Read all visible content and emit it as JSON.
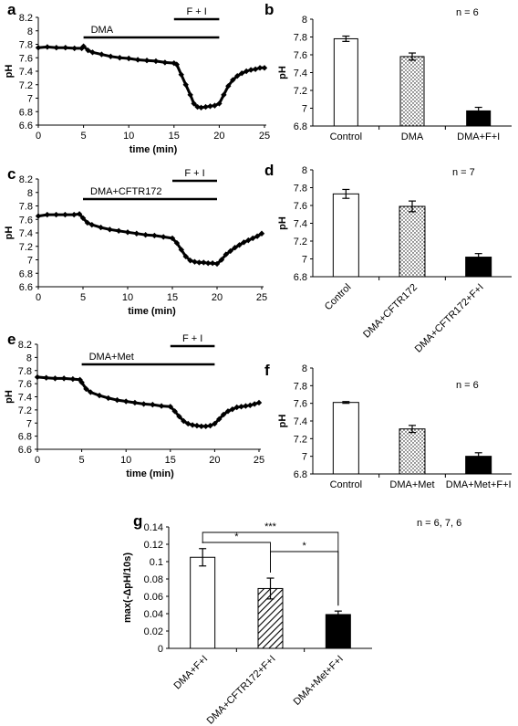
{
  "panels": [
    "a",
    "b",
    "c",
    "d",
    "e",
    "f",
    "g"
  ],
  "chart_data": [
    {
      "id": "a",
      "type": "line",
      "xlabel": "time (min)",
      "ylabel": "pH",
      "xlim": [
        0,
        25
      ],
      "ylim": [
        6.6,
        8.2
      ],
      "xticks": [
        "0",
        "5",
        "10",
        "15",
        "20",
        "25"
      ],
      "yticks": [
        "6.6",
        "6.8",
        "7",
        "7.2",
        "7.4",
        "7.6",
        "7.8",
        "8",
        "8.2"
      ],
      "bars": [
        {
          "label": "DMA",
          "start": 5,
          "end": 20
        },
        {
          "label": "F + I",
          "start": 15,
          "end": 20
        }
      ],
      "series": [
        {
          "x": [
            0,
            1,
            2,
            3,
            4,
            4.8,
            5,
            5.5,
            6,
            7,
            8,
            9,
            10,
            11,
            12,
            13,
            14,
            15,
            15.3,
            15.8,
            16.3,
            16.8,
            17.2,
            17.6,
            18,
            18.5,
            19,
            19.5,
            20,
            20.5,
            21,
            21.5,
            22,
            22.5,
            23,
            23.5,
            24,
            24.5,
            25
          ],
          "y": [
            7.75,
            7.76,
            7.75,
            7.75,
            7.74,
            7.74,
            7.77,
            7.71,
            7.68,
            7.65,
            7.62,
            7.6,
            7.59,
            7.57,
            7.56,
            7.55,
            7.53,
            7.52,
            7.5,
            7.35,
            7.2,
            7.05,
            6.92,
            6.87,
            6.86,
            6.87,
            6.88,
            6.89,
            6.92,
            7.05,
            7.18,
            7.27,
            7.33,
            7.37,
            7.4,
            7.42,
            7.43,
            7.45,
            7.45
          ]
        }
      ]
    },
    {
      "id": "b",
      "type": "bar",
      "categories": [
        "Control",
        "DMA",
        "DMA+F+I"
      ],
      "values": [
        7.78,
        7.58,
        6.97
      ],
      "errors": [
        0.03,
        0.04,
        0.04
      ],
      "fills": [
        "white",
        "dotted",
        "black"
      ],
      "ylabel": "pH",
      "ylim": [
        6.8,
        8
      ],
      "yticks": [
        "6.8",
        "7",
        "7.2",
        "7.4",
        "7.6",
        "7.8",
        "8"
      ],
      "note": "n = 6"
    },
    {
      "id": "c",
      "type": "line",
      "xlabel": "time (min)",
      "ylabel": "pH",
      "xlim": [
        0,
        25
      ],
      "ylim": [
        6.6,
        8.2
      ],
      "xticks": [
        "0",
        "5",
        "10",
        "15",
        "20",
        "25"
      ],
      "yticks": [
        "6.6",
        "6.8",
        "7",
        "7.2",
        "7.4",
        "7.6",
        "7.8",
        "8",
        "8.2"
      ],
      "bars": [
        {
          "label": "DMA+CFTR172",
          "start": 5,
          "end": 20
        },
        {
          "label": "F + I",
          "start": 15,
          "end": 20
        }
      ],
      "series": [
        {
          "x": [
            0,
            1,
            2,
            3,
            4,
            4.6,
            5,
            5.5,
            6,
            7,
            8,
            9,
            10,
            11,
            12,
            13,
            14,
            15,
            15.5,
            16,
            16.5,
            17,
            17.5,
            18,
            18.5,
            19,
            19.5,
            20,
            20.5,
            21,
            21.5,
            22,
            22.5,
            23,
            23.5,
            24,
            24.5,
            25
          ],
          "y": [
            7.65,
            7.67,
            7.67,
            7.67,
            7.67,
            7.68,
            7.62,
            7.55,
            7.52,
            7.48,
            7.45,
            7.43,
            7.41,
            7.39,
            7.37,
            7.36,
            7.34,
            7.32,
            7.25,
            7.15,
            7.05,
            6.99,
            6.97,
            6.96,
            6.96,
            6.95,
            6.95,
            6.94,
            7.0,
            7.08,
            7.13,
            7.18,
            7.22,
            7.26,
            7.29,
            7.32,
            7.35,
            7.39
          ]
        }
      ]
    },
    {
      "id": "d",
      "type": "bar",
      "categories": [
        "Control",
        "DMA+CFTR172",
        "DMA+CFTR172+F+I"
      ],
      "values": [
        7.73,
        7.59,
        7.02
      ],
      "errors": [
        0.05,
        0.06,
        0.04
      ],
      "fills": [
        "white",
        "dotted",
        "black"
      ],
      "ylabel": "pH",
      "ylim": [
        6.8,
        8
      ],
      "yticks": [
        "6.8",
        "7",
        "7.2",
        "7.4",
        "7.6",
        "7.8",
        "8"
      ],
      "note": "n = 7"
    },
    {
      "id": "e",
      "type": "line",
      "xlabel": "time (min)",
      "ylabel": "pH",
      "xlim": [
        0,
        25
      ],
      "ylim": [
        6.6,
        8.2
      ],
      "xticks": [
        "0",
        "5",
        "10",
        "15",
        "20",
        "25"
      ],
      "yticks": [
        "6.6",
        "6.8",
        "7",
        "7.2",
        "7.4",
        "7.6",
        "7.8",
        "8",
        "8.2"
      ],
      "bars": [
        {
          "label": "DMA+Met",
          "start": 5,
          "end": 20
        },
        {
          "label": "F + I",
          "start": 15,
          "end": 20
        }
      ],
      "series": [
        {
          "x": [
            0,
            1,
            2,
            3,
            4,
            4.8,
            5,
            5.5,
            6,
            7,
            8,
            9,
            10,
            11,
            12,
            13,
            14,
            15,
            15.5,
            16,
            16.5,
            17,
            17.5,
            18,
            18.5,
            19,
            19.5,
            20,
            20.5,
            21,
            21.5,
            22,
            22.5,
            23,
            23.5,
            24,
            24.5,
            25
          ],
          "y": [
            7.7,
            7.69,
            7.68,
            7.68,
            7.67,
            7.66,
            7.62,
            7.52,
            7.47,
            7.42,
            7.38,
            7.35,
            7.33,
            7.31,
            7.29,
            7.28,
            7.26,
            7.25,
            7.18,
            7.1,
            7.03,
            6.99,
            6.97,
            6.96,
            6.95,
            6.95,
            6.96,
            6.99,
            7.06,
            7.13,
            7.18,
            7.21,
            7.24,
            7.25,
            7.26,
            7.27,
            7.29,
            7.31
          ]
        }
      ]
    },
    {
      "id": "f",
      "type": "bar",
      "categories": [
        "Control",
        "DMA+Met",
        "DMA+Met+F+I"
      ],
      "values": [
        7.61,
        7.31,
        7.0
      ],
      "errors": [
        0.01,
        0.04,
        0.04
      ],
      "fills": [
        "white",
        "dotted",
        "black"
      ],
      "ylabel": "pH",
      "ylim": [
        6.8,
        8
      ],
      "yticks": [
        "6.8",
        "7",
        "7.2",
        "7.4",
        "7.6",
        "7.8",
        "8"
      ],
      "note": "n = 6"
    },
    {
      "id": "g",
      "type": "bar",
      "categories": [
        "DMA+F+I",
        "DMA+CFTR172+F+I",
        "DMA+Met+F+I"
      ],
      "values": [
        0.105,
        0.069,
        0.039
      ],
      "errors": [
        0.01,
        0.012,
        0.004
      ],
      "fills": [
        "white",
        "hatched",
        "black"
      ],
      "ylabel": "max(-ΔpH/10s)",
      "ylim": [
        0,
        0.14
      ],
      "yticks": [
        "0",
        "0.02",
        "0.04",
        "0.06",
        "0.08",
        "0.1",
        "0.12",
        "0.14"
      ],
      "note": "n = 6, 7, 6",
      "significance": [
        {
          "from": 0,
          "to": 1,
          "label": "*"
        },
        {
          "from": 1,
          "to": 2,
          "label": "*"
        },
        {
          "from": 0,
          "to": 2,
          "label": "***"
        }
      ]
    }
  ]
}
